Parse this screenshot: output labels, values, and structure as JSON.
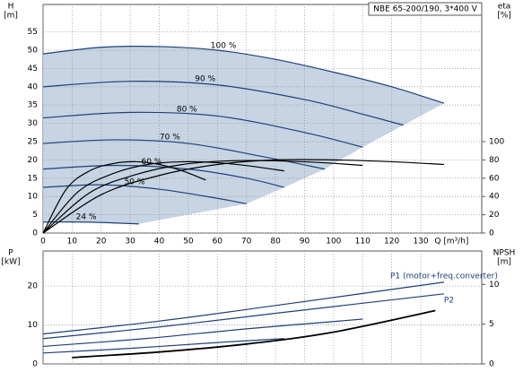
{
  "chart_data": [
    {
      "type": "line",
      "title": "NBE 65-200/190, 3*400 V",
      "ylabel": [
        "H",
        "[m]"
      ],
      "y2label": [
        "eta",
        "[%]"
      ],
      "xlabel": "Q [m³/h]",
      "xlim": [
        0,
        151
      ],
      "xticks": [
        0,
        10,
        20,
        30,
        40,
        50,
        60,
        70,
        80,
        90,
        100,
        110,
        120,
        130
      ],
      "ylim": [
        0,
        62.5
      ],
      "yticks": [
        0,
        5,
        10,
        15,
        20,
        25,
        30,
        35,
        40,
        45,
        50,
        55
      ],
      "y2lim": [
        0,
        250
      ],
      "y2ticks": [
        0,
        20,
        40,
        60,
        80,
        100
      ],
      "grid": true,
      "area_color": "#c6d4e3",
      "series": [
        {
          "name": "100 %",
          "color": "#1f3f7a",
          "x": [
            0,
            20,
            40,
            60,
            80,
            100,
            120,
            138
          ],
          "values": [
            49,
            50.8,
            51,
            50,
            47.5,
            44,
            40,
            35.5
          ]
        },
        {
          "name": "90 %",
          "color": "#1f3f7a",
          "x": [
            0,
            30,
            60,
            90,
            110,
            124
          ],
          "values": [
            40,
            41.5,
            40.5,
            36.5,
            32.5,
            29.5
          ]
        },
        {
          "name": "80 %",
          "color": "#1f3f7a",
          "x": [
            0,
            30,
            60,
            90,
            110
          ],
          "values": [
            31.5,
            33,
            32,
            27.5,
            23.5
          ]
        },
        {
          "name": "70 %",
          "color": "#1f3f7a",
          "x": [
            0,
            25,
            50,
            75,
            97
          ],
          "values": [
            24.5,
            25.5,
            24.5,
            21,
            17.5
          ]
        },
        {
          "name": "60 %",
          "color": "#1f3f7a",
          "x": [
            0,
            25,
            50,
            70,
            83
          ],
          "values": [
            17.5,
            18.5,
            17.5,
            15,
            12.5
          ]
        },
        {
          "name": "50 %",
          "color": "#1f3f7a",
          "x": [
            0,
            20,
            40,
            60,
            70
          ],
          "values": [
            12.5,
            13.2,
            12,
            9.5,
            8
          ]
        },
        {
          "name": "24 %",
          "color": "#1f3f7a",
          "x": [
            0,
            15,
            33
          ],
          "values": [
            3,
            3,
            2.5
          ]
        },
        {
          "axis": "y2",
          "color": "#000000",
          "x": [
            0,
            20,
            40,
            60,
            80,
            100,
            120,
            138
          ],
          "values": [
            0,
            42,
            63,
            75,
            80,
            80,
            78,
            75
          ]
        },
        {
          "axis": "y2",
          "color": "#000000",
          "x": [
            0,
            16,
            32,
            48,
            64,
            80,
            96,
            110
          ],
          "values": [
            0,
            44,
            64,
            75,
            79,
            79,
            77,
            74
          ]
        },
        {
          "axis": "y2",
          "color": "#000000",
          "x": [
            0,
            12,
            24,
            36,
            48,
            60,
            72,
            83
          ],
          "values": [
            0,
            45,
            65,
            75,
            78,
            77,
            73,
            68
          ]
        },
        {
          "axis": "y2",
          "color": "#000000",
          "x": [
            0,
            8,
            16,
            24,
            32,
            40,
            48,
            56
          ],
          "values": [
            0,
            48,
            68,
            76,
            78,
            75,
            68,
            58
          ]
        }
      ]
    },
    {
      "type": "line",
      "ylabel": [
        "P",
        "[kW]"
      ],
      "y2label": [
        "NPSH",
        "[m]"
      ],
      "xlim": [
        0,
        151
      ],
      "xticks": [
        0,
        10,
        20,
        30,
        40,
        50,
        60,
        70,
        80,
        90,
        100,
        110,
        120,
        130
      ],
      "ylim": [
        0,
        29
      ],
      "yticks": [
        0,
        10,
        20
      ],
      "y2lim": [
        0,
        14.2
      ],
      "y2ticks": [
        0,
        5,
        10
      ],
      "grid": true,
      "series": [
        {
          "name": "P1 (motor+freq.converter)",
          "color": "#1f3f7a",
          "x": [
            0,
            40,
            80,
            138
          ],
          "values": [
            7.7,
            11,
            15,
            21
          ]
        },
        {
          "name": "P2",
          "color": "#1f3f7a",
          "x": [
            0,
            40,
            80,
            138
          ],
          "values": [
            6.5,
            9.5,
            13,
            18
          ]
        },
        {
          "color": "#1f3f7a",
          "x": [
            0,
            35,
            70,
            110
          ],
          "values": [
            4.5,
            6.5,
            9,
            11.5
          ]
        },
        {
          "color": "#1f3f7a",
          "x": [
            0,
            30,
            60,
            83
          ],
          "values": [
            2.8,
            4,
            5.5,
            6.5
          ]
        },
        {
          "axis": "y2",
          "color": "#000000",
          "x": [
            10,
            40,
            70,
            100,
            135
          ],
          "values": [
            0.8,
            1.5,
            2.5,
            4,
            6.7
          ]
        }
      ]
    }
  ]
}
